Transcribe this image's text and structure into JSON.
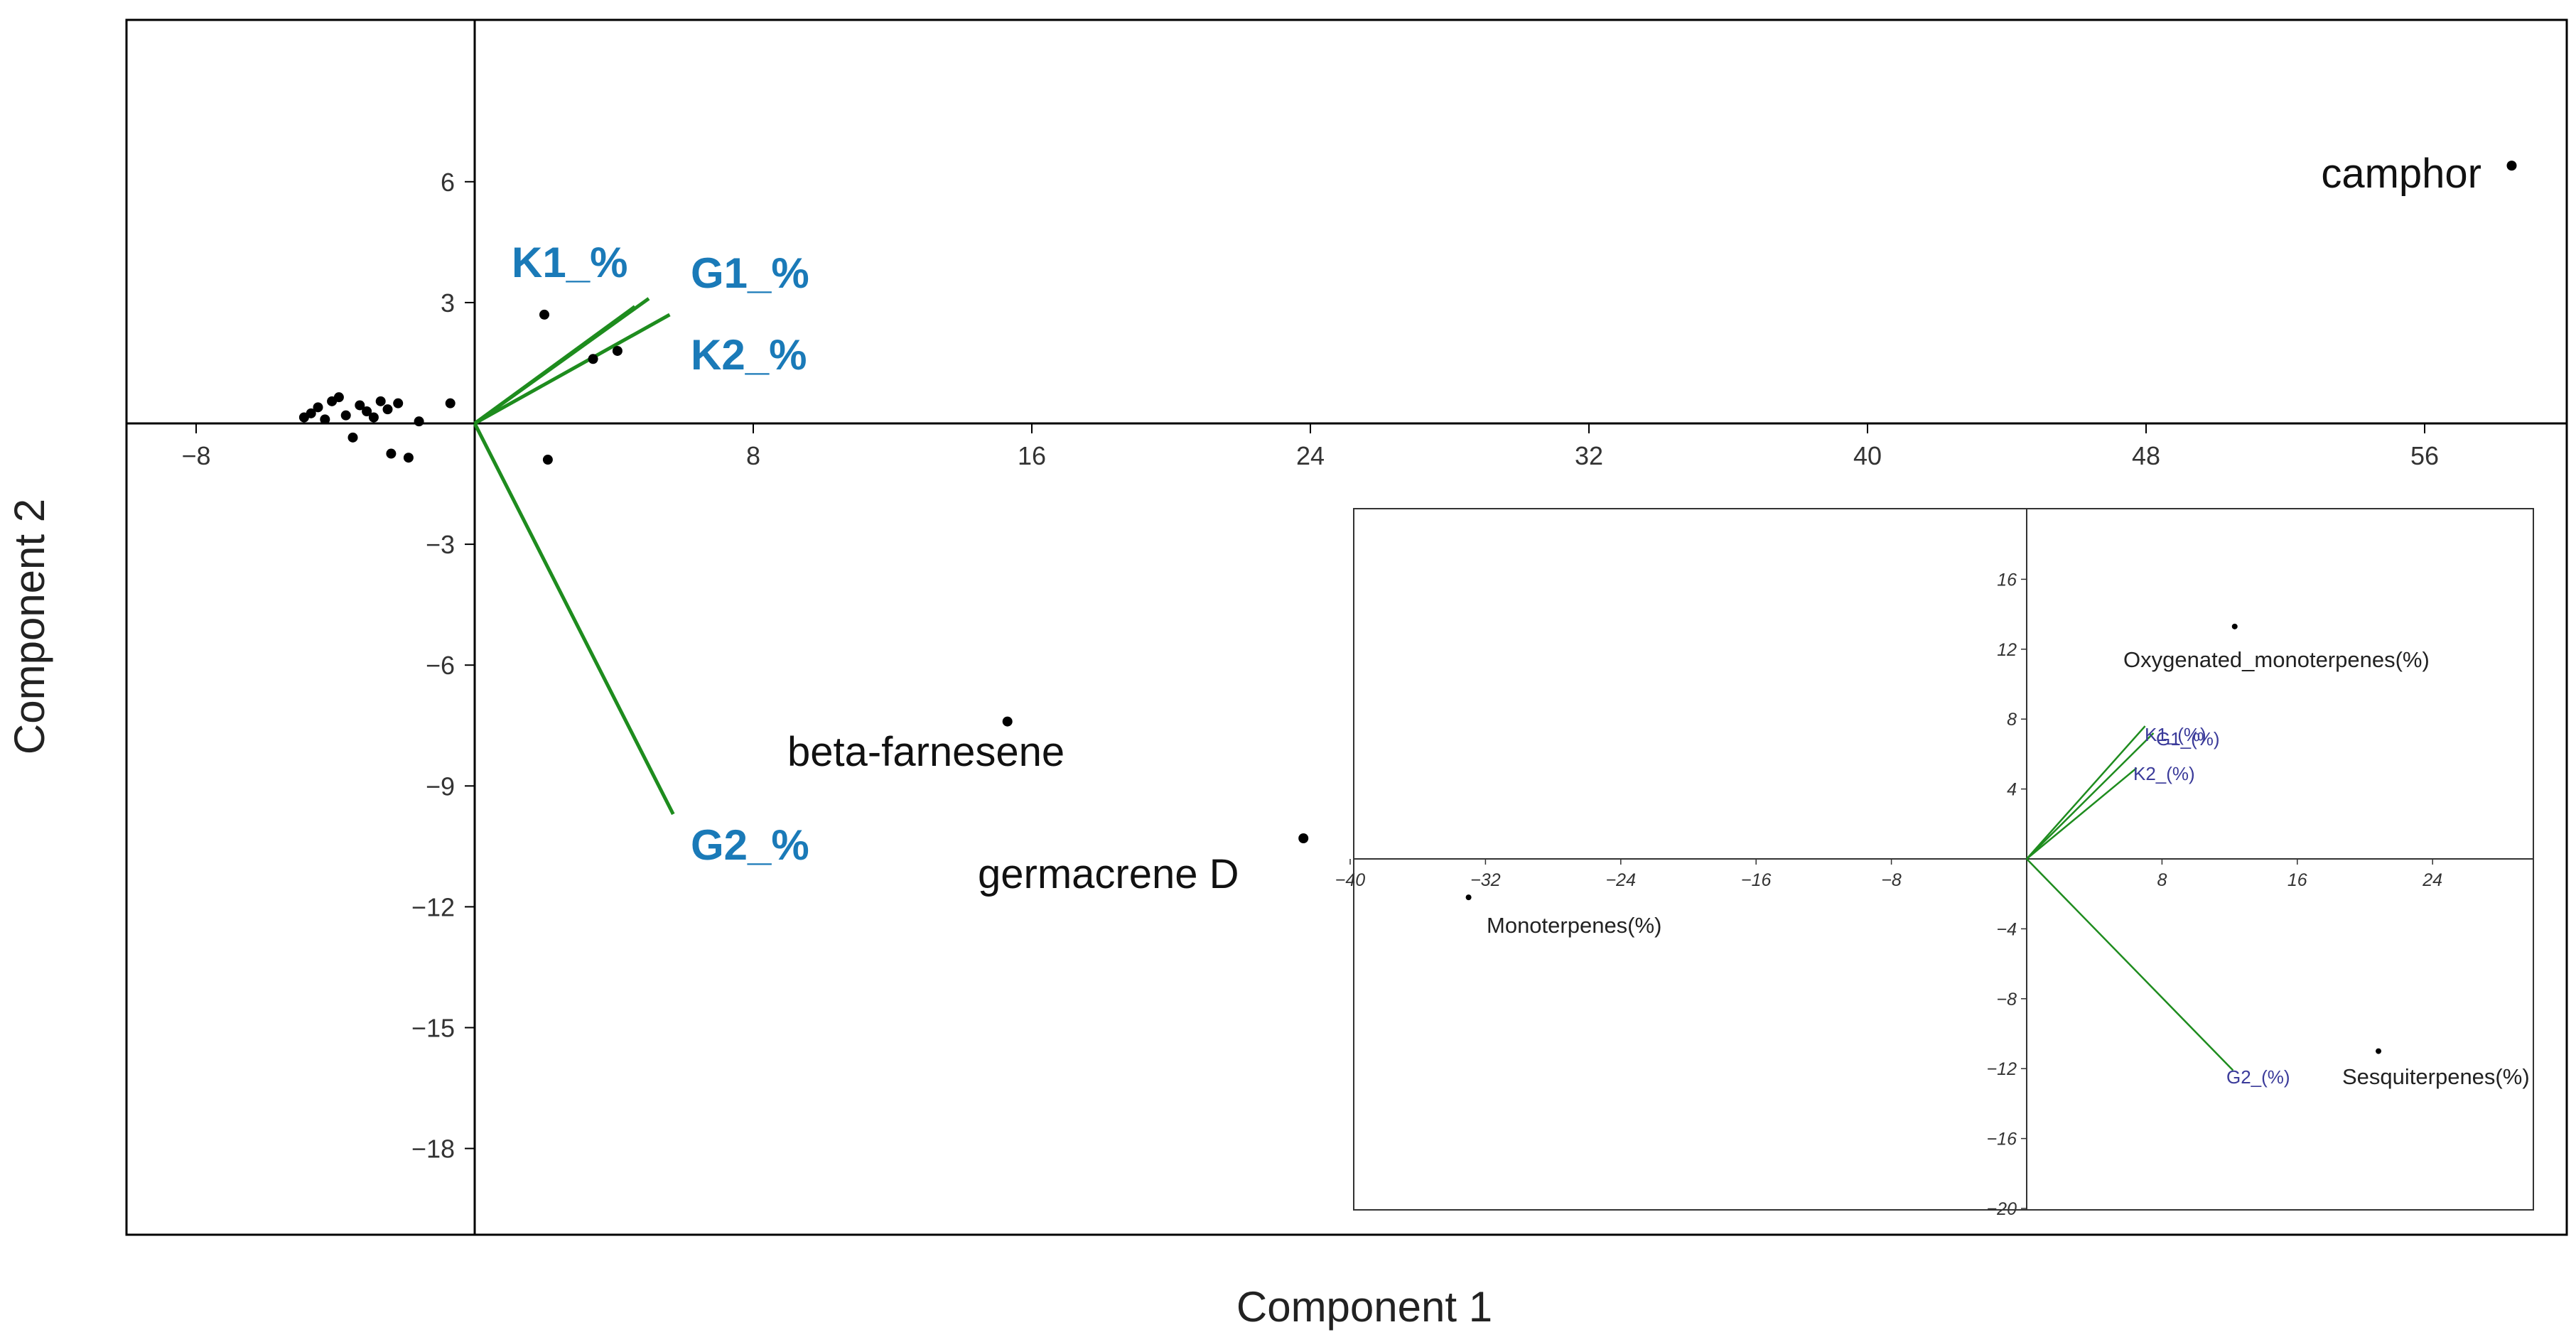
{
  "chart_data": [
    {
      "type": "scatter",
      "subtype": "biplot",
      "xlabel": "Component 1",
      "ylabel": "Component 2",
      "xlim": [
        -10,
        60
      ],
      "ylim": [
        -20,
        10
      ],
      "xticks": [
        -8,
        8,
        16,
        24,
        32,
        40,
        48,
        56
      ],
      "yticks": [
        6,
        3,
        -3,
        -6,
        -9,
        -12,
        -15,
        -18
      ],
      "points": [
        {
          "x": -4.9,
          "y": 0.15
        },
        {
          "x": -4.7,
          "y": 0.25
        },
        {
          "x": -4.5,
          "y": 0.4
        },
        {
          "x": -4.3,
          "y": 0.1
        },
        {
          "x": -4.1,
          "y": 0.55
        },
        {
          "x": -3.9,
          "y": 0.65
        },
        {
          "x": -3.7,
          "y": 0.2
        },
        {
          "x": -3.5,
          "y": -0.35
        },
        {
          "x": -3.3,
          "y": 0.45
        },
        {
          "x": -3.1,
          "y": 0.3
        },
        {
          "x": -2.9,
          "y": 0.15
        },
        {
          "x": -2.7,
          "y": 0.55
        },
        {
          "x": -2.5,
          "y": 0.35
        },
        {
          "x": -2.4,
          "y": -0.75
        },
        {
          "x": -2.2,
          "y": 0.5
        },
        {
          "x": -1.9,
          "y": -0.85
        },
        {
          "x": -1.6,
          "y": 0.05
        },
        {
          "x": -0.7,
          "y": 0.5
        },
        {
          "x": 2.0,
          "y": 2.7
        },
        {
          "x": 2.1,
          "y": -0.9
        },
        {
          "x": 3.4,
          "y": 1.6
        },
        {
          "x": 4.1,
          "y": 1.8
        },
        {
          "x": 15.3,
          "y": -7.4,
          "label": "beta-farnesene"
        },
        {
          "x": 23.8,
          "y": -10.3,
          "label": "germacrene D"
        },
        {
          "x": 58.5,
          "y": 6.4,
          "label": "camphor"
        }
      ],
      "vectors": [
        {
          "name": "K1_%",
          "x": 4.6,
          "y": 2.9
        },
        {
          "name": "G1_%",
          "x": 5.0,
          "y": 3.1
        },
        {
          "name": "K2_%",
          "x": 5.6,
          "y": 2.7
        },
        {
          "name": "G2_%",
          "x": 5.7,
          "y": -9.7
        }
      ],
      "vector_color": "#1e8c1e",
      "label_color": "#1a7ab8"
    },
    {
      "type": "scatter",
      "subtype": "biplot",
      "inset": true,
      "xlim": [
        -40,
        30
      ],
      "ylim": [
        -20,
        20
      ],
      "xticks": [
        -40,
        -32,
        -24,
        -16,
        -8,
        8,
        16,
        24
      ],
      "yticks": [
        16,
        12,
        8,
        4,
        -4,
        -8,
        -12,
        -16,
        -20
      ],
      "points": [
        {
          "x": 12.3,
          "y": 13.3,
          "label": "Oxygenated_monoterpenes(%)"
        },
        {
          "x": -33.0,
          "y": -2.2,
          "label": "Monoterpenes(%)"
        },
        {
          "x": 20.8,
          "y": -11.0,
          "label": "Sesquiterpenes(%)"
        }
      ],
      "vectors": [
        {
          "name": "K1_(%)",
          "x": 7.0,
          "y": 7.6
        },
        {
          "name": "G1_(%)",
          "x": 7.5,
          "y": 7.2
        },
        {
          "name": "K2_(%)",
          "x": 6.5,
          "y": 5.2
        },
        {
          "name": "G2_(%)",
          "x": 12.2,
          "y": -12.1
        }
      ],
      "vector_color": "#1e8c1e",
      "label_color": "#3b3b9a"
    }
  ]
}
